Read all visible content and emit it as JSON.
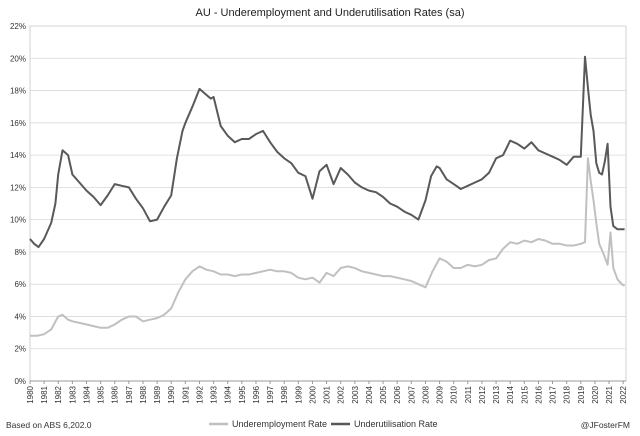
{
  "chart_data": {
    "type": "line",
    "title": "AU - Underemployment and Underutilisation Rates (sa)",
    "xlabel": "",
    "ylabel": "",
    "xlim": [
      1980,
      2022.2
    ],
    "ylim": [
      0,
      22
    ],
    "y_ticks": [
      "0%",
      "2%",
      "4%",
      "6%",
      "8%",
      "10%",
      "12%",
      "14%",
      "16%",
      "18%",
      "20%",
      "22%"
    ],
    "x_ticks": [
      "1980",
      "1981",
      "1982",
      "1983",
      "1984",
      "1985",
      "1986",
      "1987",
      "1988",
      "1989",
      "1990",
      "1991",
      "1992",
      "1993",
      "1994",
      "1995",
      "1996",
      "1997",
      "1998",
      "1999",
      "2000",
      "2001",
      "2002",
      "2003",
      "2004",
      "2005",
      "2006",
      "2007",
      "2008",
      "2009",
      "2010",
      "2011",
      "2012",
      "2013",
      "2014",
      "2015",
      "2016",
      "2017",
      "2018",
      "2019",
      "2020",
      "2021",
      "2022"
    ],
    "grid": "horizontal",
    "legend_position": "bottom",
    "colors": {
      "underemployment": "#c0c0c0",
      "underutilisation": "#595959"
    },
    "series": [
      {
        "name": "Underemployment Rate",
        "x": [
          1980.0,
          1980.5,
          1981.0,
          1981.5,
          1982.0,
          1982.3,
          1982.7,
          1983.0,
          1983.5,
          1984.0,
          1984.5,
          1985.0,
          1985.5,
          1986.0,
          1986.5,
          1987.0,
          1987.5,
          1988.0,
          1988.5,
          1989.0,
          1989.5,
          1990.0,
          1990.5,
          1991.0,
          1991.5,
          1992.0,
          1992.5,
          1993.0,
          1993.5,
          1994.0,
          1994.5,
          1995.0,
          1995.5,
          1996.0,
          1996.5,
          1997.0,
          1997.5,
          1998.0,
          1998.5,
          1999.0,
          1999.5,
          2000.0,
          2000.5,
          2001.0,
          2001.5,
          2002.0,
          2002.5,
          2003.0,
          2003.5,
          2004.0,
          2004.5,
          2005.0,
          2005.5,
          2006.0,
          2006.5,
          2007.0,
          2007.5,
          2008.0,
          2008.5,
          2009.0,
          2009.5,
          2010.0,
          2010.5,
          2011.0,
          2011.5,
          2012.0,
          2012.5,
          2013.0,
          2013.5,
          2014.0,
          2014.5,
          2015.0,
          2015.5,
          2016.0,
          2016.5,
          2017.0,
          2017.5,
          2018.0,
          2018.5,
          2019.0,
          2019.3,
          2019.5,
          2019.7,
          2019.9,
          2020.1,
          2020.3,
          2020.6,
          2020.9,
          2021.1,
          2021.3,
          2021.6,
          2021.9,
          2022.1
        ],
        "values": [
          2.8,
          2.8,
          2.9,
          3.2,
          4.0,
          4.1,
          3.8,
          3.7,
          3.6,
          3.5,
          3.4,
          3.3,
          3.3,
          3.5,
          3.8,
          4.0,
          4.0,
          3.7,
          3.8,
          3.9,
          4.1,
          4.5,
          5.5,
          6.3,
          6.8,
          7.1,
          6.9,
          6.8,
          6.6,
          6.6,
          6.5,
          6.6,
          6.6,
          6.7,
          6.8,
          6.9,
          6.8,
          6.8,
          6.7,
          6.4,
          6.3,
          6.4,
          6.1,
          6.7,
          6.5,
          7.0,
          7.1,
          7.0,
          6.8,
          6.7,
          6.6,
          6.5,
          6.5,
          6.4,
          6.3,
          6.2,
          6.0,
          5.8,
          6.8,
          7.6,
          7.4,
          7.0,
          7.0,
          7.2,
          7.1,
          7.2,
          7.5,
          7.6,
          8.2,
          8.6,
          8.5,
          8.7,
          8.6,
          8.8,
          8.7,
          8.5,
          8.5,
          8.4,
          8.4,
          8.5,
          8.6,
          13.8,
          12.4,
          11.2,
          9.8,
          8.5,
          7.9,
          7.2,
          9.2,
          7.0,
          6.3,
          6.0,
          5.9
        ]
      },
      {
        "name": "Underutilisation Rate",
        "x": [
          1980.0,
          1980.3,
          1980.6,
          1981.0,
          1981.5,
          1981.8,
          1982.0,
          1982.3,
          1982.7,
          1983.0,
          1983.5,
          1984.0,
          1984.5,
          1985.0,
          1985.5,
          1986.0,
          1986.5,
          1987.0,
          1987.5,
          1988.0,
          1988.5,
          1989.0,
          1989.5,
          1990.0,
          1990.4,
          1990.8,
          1991.0,
          1991.5,
          1992.0,
          1992.4,
          1992.8,
          1993.0,
          1993.5,
          1994.0,
          1994.5,
          1995.0,
          1995.5,
          1996.0,
          1996.5,
          1997.0,
          1997.5,
          1998.0,
          1998.5,
          1999.0,
          1999.5,
          2000.0,
          2000.5,
          2001.0,
          2001.5,
          2002.0,
          2002.5,
          2003.0,
          2003.5,
          2004.0,
          2004.5,
          2005.0,
          2005.5,
          2006.0,
          2006.5,
          2007.0,
          2007.5,
          2008.0,
          2008.4,
          2008.8,
          2009.0,
          2009.5,
          2010.0,
          2010.5,
          2011.0,
          2011.5,
          2012.0,
          2012.5,
          2013.0,
          2013.5,
          2014.0,
          2014.5,
          2015.0,
          2015.5,
          2016.0,
          2016.5,
          2017.0,
          2017.5,
          2018.0,
          2018.5,
          2019.0,
          2019.3,
          2019.5,
          2019.7,
          2019.9,
          2020.1,
          2020.3,
          2020.5,
          2020.7,
          2020.9,
          2021.1,
          2021.3,
          2021.6,
          2021.9,
          2022.1
        ],
        "values": [
          8.8,
          8.5,
          8.3,
          8.8,
          9.8,
          11.0,
          12.8,
          14.3,
          14.0,
          12.8,
          12.3,
          11.8,
          11.4,
          10.9,
          11.5,
          12.2,
          12.1,
          12.0,
          11.3,
          10.7,
          9.9,
          10.0,
          10.8,
          11.5,
          13.8,
          15.5,
          16.0,
          17.0,
          18.1,
          17.8,
          17.5,
          17.6,
          15.8,
          15.2,
          14.8,
          15.0,
          15.0,
          15.3,
          15.5,
          14.8,
          14.2,
          13.8,
          13.5,
          12.9,
          12.7,
          11.3,
          13.0,
          13.4,
          12.2,
          13.2,
          12.8,
          12.3,
          12.0,
          11.8,
          11.7,
          11.4,
          11.0,
          10.8,
          10.5,
          10.3,
          10.0,
          11.2,
          12.7,
          13.3,
          13.2,
          12.5,
          12.2,
          11.9,
          12.1,
          12.3,
          12.5,
          12.9,
          13.8,
          14.0,
          14.9,
          14.7,
          14.4,
          14.8,
          14.3,
          14.1,
          13.9,
          13.7,
          13.4,
          13.9,
          13.9,
          20.1,
          18.2,
          16.5,
          15.5,
          13.5,
          12.9,
          12.8,
          13.6,
          14.7,
          10.8,
          9.6,
          9.4,
          9.4,
          9.4
        ]
      }
    ],
    "note_left": "Based on ABS 6,202.0",
    "note_right": "@JFosterFM"
  }
}
